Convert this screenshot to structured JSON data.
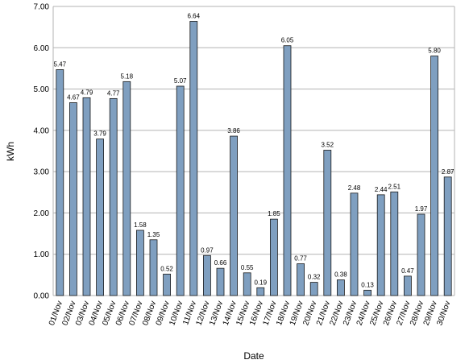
{
  "chart_data": {
    "type": "bar",
    "title": "",
    "xlabel": "Date",
    "ylabel": "kWh",
    "ylim": [
      0,
      7
    ],
    "yticks": [
      "0.00",
      "1.00",
      "2.00",
      "3.00",
      "4.00",
      "5.00",
      "6.00",
      "7.00"
    ],
    "grid": true,
    "legend": "none",
    "colors": {
      "bar_fill": "#7f9fc0",
      "bar_stroke": "#1a1a1a",
      "grid": "#b3b3b3",
      "plot_border": "#b3b3b3"
    },
    "categories": [
      "01/Nov",
      "02/Nov",
      "03/Nov",
      "04/Nov",
      "05/Nov",
      "06/Nov",
      "07/Nov",
      "08/Nov",
      "09/Nov",
      "10/Nov",
      "11/Nov",
      "12/Nov",
      "13/Nov",
      "14/Nov",
      "15/Nov",
      "16/Nov",
      "17/Nov",
      "18/Nov",
      "19/Nov",
      "20/Nov",
      "21/Nov",
      "22/Nov",
      "23/Nov",
      "24/Nov",
      "25/Nov",
      "26/Nov",
      "27/Nov",
      "28/Nov",
      "29/Nov",
      "30/Nov"
    ],
    "values": [
      5.47,
      4.67,
      4.79,
      3.79,
      4.77,
      5.18,
      1.58,
      1.35,
      0.52,
      5.07,
      6.64,
      0.97,
      0.66,
      3.86,
      0.55,
      0.19,
      1.85,
      6.05,
      0.77,
      0.32,
      3.52,
      0.38,
      2.48,
      0.13,
      2.44,
      2.51,
      0.47,
      1.97,
      5.8,
      2.87
    ],
    "value_labels": [
      "5.47",
      "4.67",
      "4.79",
      "3.79",
      "4.77",
      "5.18",
      "1.58",
      "1.35",
      "0.52",
      "5.07",
      "6.64",
      "0.97",
      "0.66",
      "3.86",
      "0.55",
      "0.19",
      "1.85",
      "6.05",
      "0.77",
      "0.32",
      "3.52",
      "0.38",
      "2.48",
      "0.13",
      "2.44",
      "2.51",
      "0.47",
      "1.97",
      "5.80",
      "2.87"
    ]
  }
}
